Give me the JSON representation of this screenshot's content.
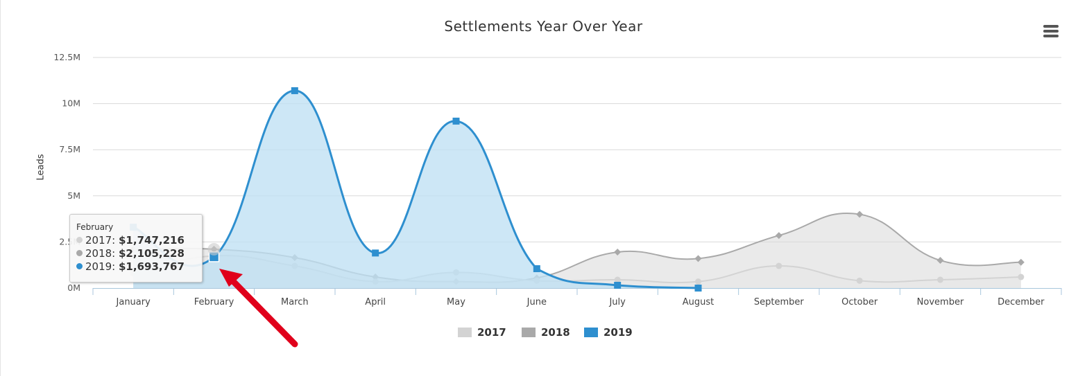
{
  "chart_data": {
    "type": "area",
    "title": "Settlements Year Over Year",
    "xlabel": "",
    "ylabel": "Leads",
    "categories": [
      "January",
      "February",
      "March",
      "April",
      "May",
      "June",
      "July",
      "August",
      "September",
      "October",
      "November",
      "December"
    ],
    "y_ticks": [
      "0M",
      "2.5M",
      "5M",
      "7.5M",
      "10M",
      "12.5M"
    ],
    "y_tick_values": [
      0,
      2500000,
      5000000,
      7500000,
      10000000,
      12500000
    ],
    "ylim": [
      0,
      12500000
    ],
    "grid": true,
    "legend_position": "bottom-center",
    "series": [
      {
        "name": "2017",
        "color": "#d3d3d3",
        "fill": "#e6e6e6",
        "marker": "circle",
        "values": [
          800000,
          1747216,
          1200000,
          350000,
          850000,
          400000,
          450000,
          350000,
          1200000,
          400000,
          450000,
          600000
        ]
      },
      {
        "name": "2018",
        "color": "#a9a9a9",
        "fill": "#dcdcdc",
        "marker": "diamond",
        "values": [
          2100000,
          2105228,
          1650000,
          600000,
          350000,
          550000,
          1950000,
          1600000,
          2850000,
          4000000,
          1500000,
          1400000
        ]
      },
      {
        "name": "2019",
        "color": "#2e8fcf",
        "fill": "#bfe0f3",
        "marker": "square",
        "values": [
          3300000,
          1693767,
          10700000,
          1900000,
          9050000,
          1050000,
          150000,
          0,
          null,
          null,
          null,
          null
        ]
      }
    ]
  },
  "tooltip": {
    "header": "February",
    "rows": [
      {
        "label": "2017: ",
        "value": "$1,747,216",
        "color": "#d3d3d3"
      },
      {
        "label": "2018: ",
        "value": "$2,105,228",
        "color": "#a9a9a9"
      },
      {
        "label": "2019: ",
        "value": "$1,693,767",
        "color": "#2e8fcf"
      }
    ]
  },
  "menu": {
    "icon": "hamburger-menu-icon"
  },
  "annotation": {
    "icon": "red-arrow-icon",
    "color": "#e0001b"
  }
}
